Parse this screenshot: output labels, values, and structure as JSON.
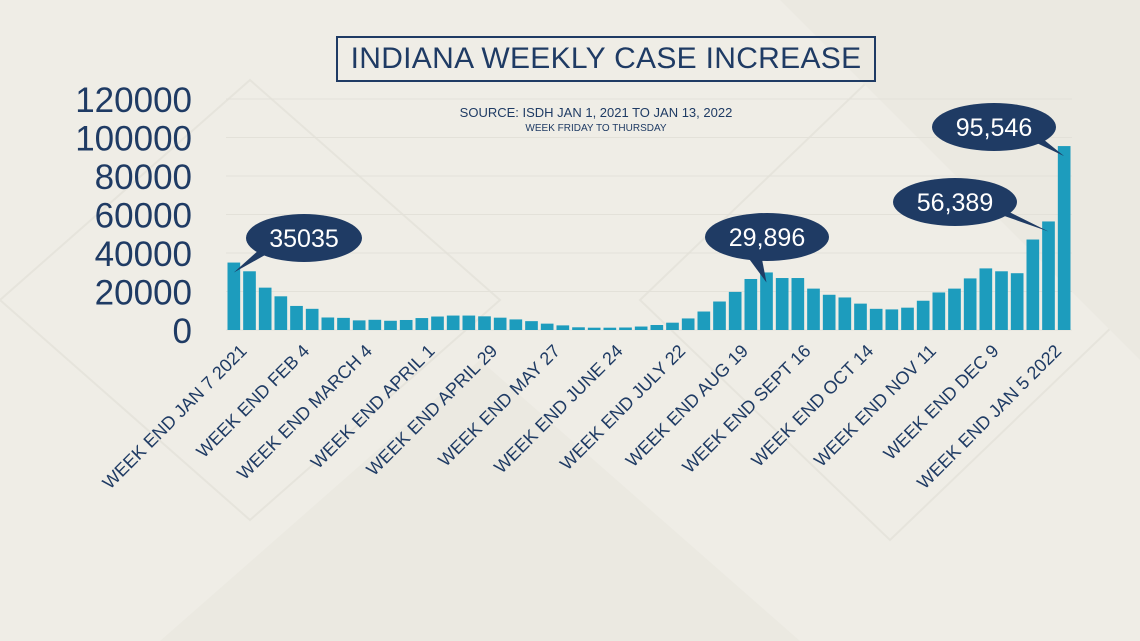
{
  "colors": {
    "bar": "#1d9cbd",
    "navy": "#1f3b64",
    "background": "#efede6",
    "gridline": "#e3e1d9"
  },
  "chart_data": {
    "type": "bar",
    "title": "INDIANA WEEKLY CASE INCREASE",
    "subtitle": "SOURCE: ISDH JAN 1, 2021 TO JAN 13, 2022",
    "subtitle2": "WEEK FRIDAY TO THURSDAY",
    "xlabel": "",
    "ylabel": "",
    "ylim": [
      0,
      120000
    ],
    "yticks": [
      0,
      20000,
      40000,
      60000,
      80000,
      100000,
      120000
    ],
    "grid": true,
    "categories": [
      "WEEK END JAN 7 2021",
      "",
      "",
      "",
      "WEEK END FEB 4",
      "",
      "",
      "",
      "WEEK END MARCH 4",
      "",
      "",
      "",
      "WEEK END APRIL 1",
      "",
      "",
      "",
      "WEEK END APRIL 29",
      "",
      "",
      "",
      "WEEK END MAY 27",
      "",
      "",
      "",
      "WEEK END JUNE 24",
      "",
      "",
      "",
      "WEEK END JULY 22",
      "",
      "",
      "",
      "WEEK END AUG 19",
      "",
      "",
      "",
      "WEEK END SEPT 16",
      "",
      "",
      "",
      "WEEK END OCT 14",
      "",
      "",
      "",
      "WEEK END NOV 11",
      "",
      "",
      "",
      "WEEK END DEC 9",
      "",
      "",
      "",
      "WEEK END JAN 5 2022",
      ""
    ],
    "values": [
      35035,
      30500,
      22000,
      17500,
      12500,
      11000,
      6500,
      6300,
      5000,
      5300,
      4800,
      5200,
      6200,
      7000,
      7500,
      7500,
      7100,
      6400,
      5500,
      4600,
      3300,
      2400,
      1400,
      1200,
      1200,
      1300,
      1800,
      2600,
      3800,
      6000,
      9600,
      14800,
      19800,
      26500,
      29896,
      27000,
      27000,
      21500,
      18300,
      16900,
      13700,
      11000,
      10700,
      11600,
      15200,
      19500,
      21500,
      26800,
      32000,
      30500,
      29500,
      47000,
      56389,
      95546
    ],
    "annotations": [
      {
        "label": "35035",
        "index": 0
      },
      {
        "label": "29,896",
        "index": 34
      },
      {
        "label": "56,389",
        "index": 52
      },
      {
        "label": "95,546",
        "index": 53
      }
    ]
  }
}
